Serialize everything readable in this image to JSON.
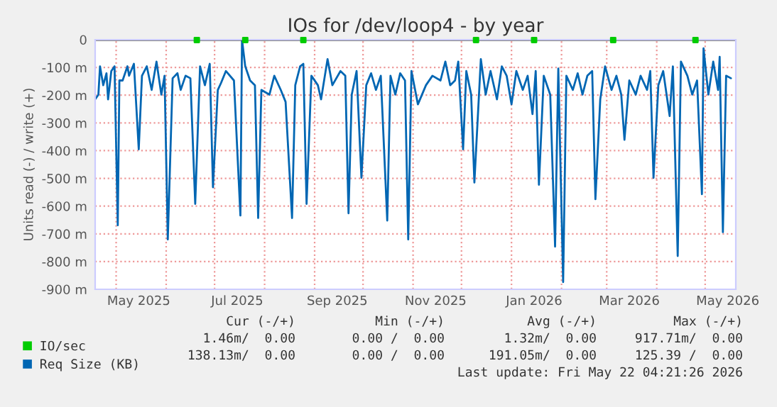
{
  "chart_data": {
    "type": "line",
    "title": "IOs for /dev/loop4 - by year",
    "ylabel": "Units read (-) / write (+)",
    "xlim": [
      "2025-04-18",
      "2026-05-20"
    ],
    "ylim": [
      -900,
      0
    ],
    "yticks": [
      {
        "value": -900,
        "label": "-900 m"
      },
      {
        "value": -800,
        "label": "-800 m"
      },
      {
        "value": -700,
        "label": "-700 m"
      },
      {
        "value": -600,
        "label": "-600 m"
      },
      {
        "value": -500,
        "label": "-500 m"
      },
      {
        "value": -400,
        "label": "-400 m"
      },
      {
        "value": -300,
        "label": "-300 m"
      },
      {
        "value": -200,
        "label": "-200 m"
      },
      {
        "value": -100,
        "label": "-100 m"
      },
      0
    ],
    "xticks": [
      {
        "value": "2025-05-15",
        "label": "May 2025"
      },
      {
        "value": "2025-07-15",
        "label": "Jul 2025"
      },
      {
        "value": "2025-09-15",
        "label": "Sep 2025"
      },
      {
        "value": "2025-11-15",
        "label": "Nov 2025"
      },
      {
        "value": "2026-01-15",
        "label": "Jan 2026"
      },
      {
        "value": "2026-03-15",
        "label": "Mar 2026"
      },
      {
        "value": "2026-05-15",
        "label": "May 2026"
      },
      {
        "value": "2025-05-01",
        "label": null
      },
      {
        "value": "2025-06-01",
        "label": null
      },
      {
        "value": "2025-07-01",
        "label": null
      },
      {
        "value": "2025-08-01",
        "label": null
      },
      {
        "value": "2025-09-01",
        "label": null
      },
      {
        "value": "2025-10-01",
        "label": null
      },
      {
        "value": "2025-11-01",
        "label": null
      },
      {
        "value": "2025-12-01",
        "label": null
      },
      {
        "value": "2026-01-01",
        "label": null
      },
      {
        "value": "2026-02-01",
        "label": null
      },
      {
        "value": "2026-03-01",
        "label": null
      },
      {
        "value": "2026-04-01",
        "label": null
      },
      {
        "value": "2026-05-01",
        "label": null
      }
    ],
    "grid": true,
    "legend": "bottom left",
    "ref_lines": [
      {
        "axis": "y",
        "value": 0,
        "color": "#000000"
      }
    ],
    "series": [
      {
        "name": "IO/sec",
        "type": "scatter",
        "color": "#00cc00",
        "x": [
          "2025-06-20",
          "2025-07-20",
          "2025-08-25",
          "2025-12-10",
          "2026-01-15",
          "2026-03-05",
          "2026-04-25"
        ],
        "values": [
          -1,
          -1,
          -1,
          -1,
          -1,
          -1,
          -1
        ]
      },
      {
        "name": "Req Size (KB)",
        "color": "#0066b3",
        "x": [
          "2025-04-18",
          "2025-04-20",
          "2025-04-21",
          "2025-04-23",
          "2025-04-25",
          "2025-04-26",
          "2025-04-28",
          "2025-04-30",
          "2025-05-02",
          "2025-05-03",
          "2025-05-05",
          "2025-05-08",
          "2025-05-09",
          "2025-05-12",
          "2025-05-15",
          "2025-05-17",
          "2025-05-20",
          "2025-05-23",
          "2025-05-26",
          "2025-05-29",
          "2025-05-31",
          "2025-06-02",
          "2025-06-05",
          "2025-06-08",
          "2025-06-10",
          "2025-06-13",
          "2025-06-16",
          "2025-06-19",
          "2025-06-22",
          "2025-06-25",
          "2025-06-28",
          "2025-06-30",
          "2025-07-03",
          "2025-07-05",
          "2025-07-08",
          "2025-07-13",
          "2025-07-17",
          "2025-07-18",
          "2025-07-20",
          "2025-07-23",
          "2025-07-26",
          "2025-07-28",
          "2025-07-30",
          "2025-08-04",
          "2025-08-07",
          "2025-08-11",
          "2025-08-14",
          "2025-08-18",
          "2025-08-20",
          "2025-08-23",
          "2025-08-25",
          "2025-08-27",
          "2025-08-30",
          "2025-09-03",
          "2025-09-05",
          "2025-09-09",
          "2025-09-12",
          "2025-09-17",
          "2025-09-20",
          "2025-09-22",
          "2025-09-24",
          "2025-09-27",
          "2025-09-30",
          "2025-10-03",
          "2025-10-06",
          "2025-10-09",
          "2025-10-12",
          "2025-10-16",
          "2025-10-18",
          "2025-10-21",
          "2025-10-24",
          "2025-10-27",
          "2025-10-29",
          "2025-10-31",
          "2025-11-04",
          "2025-11-09",
          "2025-11-13",
          "2025-11-18",
          "2025-11-21",
          "2025-11-24",
          "2025-11-27",
          "2025-11-29",
          "2025-12-02",
          "2025-12-04",
          "2025-12-07",
          "2025-12-09",
          "2025-12-13",
          "2025-12-16",
          "2025-12-19",
          "2025-12-23",
          "2025-12-26",
          "2025-12-29",
          "2026-01-01",
          "2026-01-04",
          "2026-01-08",
          "2026-01-11",
          "2026-01-14",
          "2026-01-16",
          "2026-01-18",
          "2026-01-21",
          "2026-01-25",
          "2026-01-28",
          "2026-01-30",
          "2026-02-02",
          "2026-02-04",
          "2026-02-08",
          "2026-02-11",
          "2026-02-14",
          "2026-02-17",
          "2026-02-20",
          "2026-02-22",
          "2026-02-25",
          "2026-02-28",
          "2026-03-04",
          "2026-03-07",
          "2026-03-10",
          "2026-03-12",
          "2026-03-15",
          "2026-03-19",
          "2026-03-22",
          "2026-03-26",
          "2026-03-28",
          "2026-03-30",
          "2026-04-02",
          "2026-04-05",
          "2026-04-09",
          "2026-04-11",
          "2026-04-14",
          "2026-04-16",
          "2026-04-20",
          "2026-04-23",
          "2026-04-26",
          "2026-04-29",
          "2026-04-30",
          "2026-05-03",
          "2026-05-06",
          "2026-05-09",
          "2026-05-10",
          "2026-05-12",
          "2026-05-14",
          "2026-05-17"
        ],
        "values": [
          -215,
          -198,
          -96,
          -164,
          -121,
          -215,
          -113,
          -96,
          -669,
          -147,
          -147,
          -96,
          -130,
          -87,
          -395,
          -130,
          -96,
          -181,
          -79,
          -198,
          -130,
          -720,
          -139,
          -121,
          -181,
          -130,
          -139,
          -592,
          -96,
          -164,
          -87,
          -532,
          -181,
          -156,
          -113,
          -147,
          -634,
          0,
          -96,
          -147,
          -164,
          -643,
          -181,
          -198,
          -130,
          -181,
          -224,
          -643,
          -164,
          -96,
          -87,
          -592,
          -130,
          -164,
          -215,
          -70,
          -164,
          -113,
          -130,
          -626,
          -198,
          -113,
          -498,
          -164,
          -121,
          -181,
          -130,
          -652,
          -130,
          -198,
          -121,
          -147,
          -720,
          -113,
          -233,
          -164,
          -130,
          -147,
          -79,
          -164,
          -147,
          -79,
          -395,
          -113,
          -198,
          -515,
          -70,
          -198,
          -113,
          -215,
          -96,
          -130,
          -233,
          -113,
          -181,
          -130,
          -268,
          -113,
          -523,
          -130,
          -198,
          -746,
          -104,
          -874,
          -130,
          -181,
          -121,
          -198,
          -130,
          -113,
          -575,
          -215,
          -96,
          -181,
          -130,
          -198,
          -361,
          -147,
          -198,
          -130,
          -181,
          -113,
          -498,
          -164,
          -113,
          -275,
          -96,
          -780,
          -79,
          -130,
          -198,
          -147,
          -557,
          -31,
          -198,
          -79,
          -181,
          -62,
          -694,
          -130,
          -139
        ]
      }
    ],
    "annotations": [
      "Cur (-/+)",
      "Min (-/+)",
      "Avg (-/+)",
      "Max (-/+)",
      "1.46m/  0.00",
      "0.00 /  0.00",
      "1.32m/  0.00",
      "917.71m/  0.00",
      "138.13m/  0.00",
      "0.00 /  0.00",
      "191.05m/  0.00",
      "125.39 /  0.00",
      "Last update: Fri May 22 04:21:26 2026"
    ]
  }
}
